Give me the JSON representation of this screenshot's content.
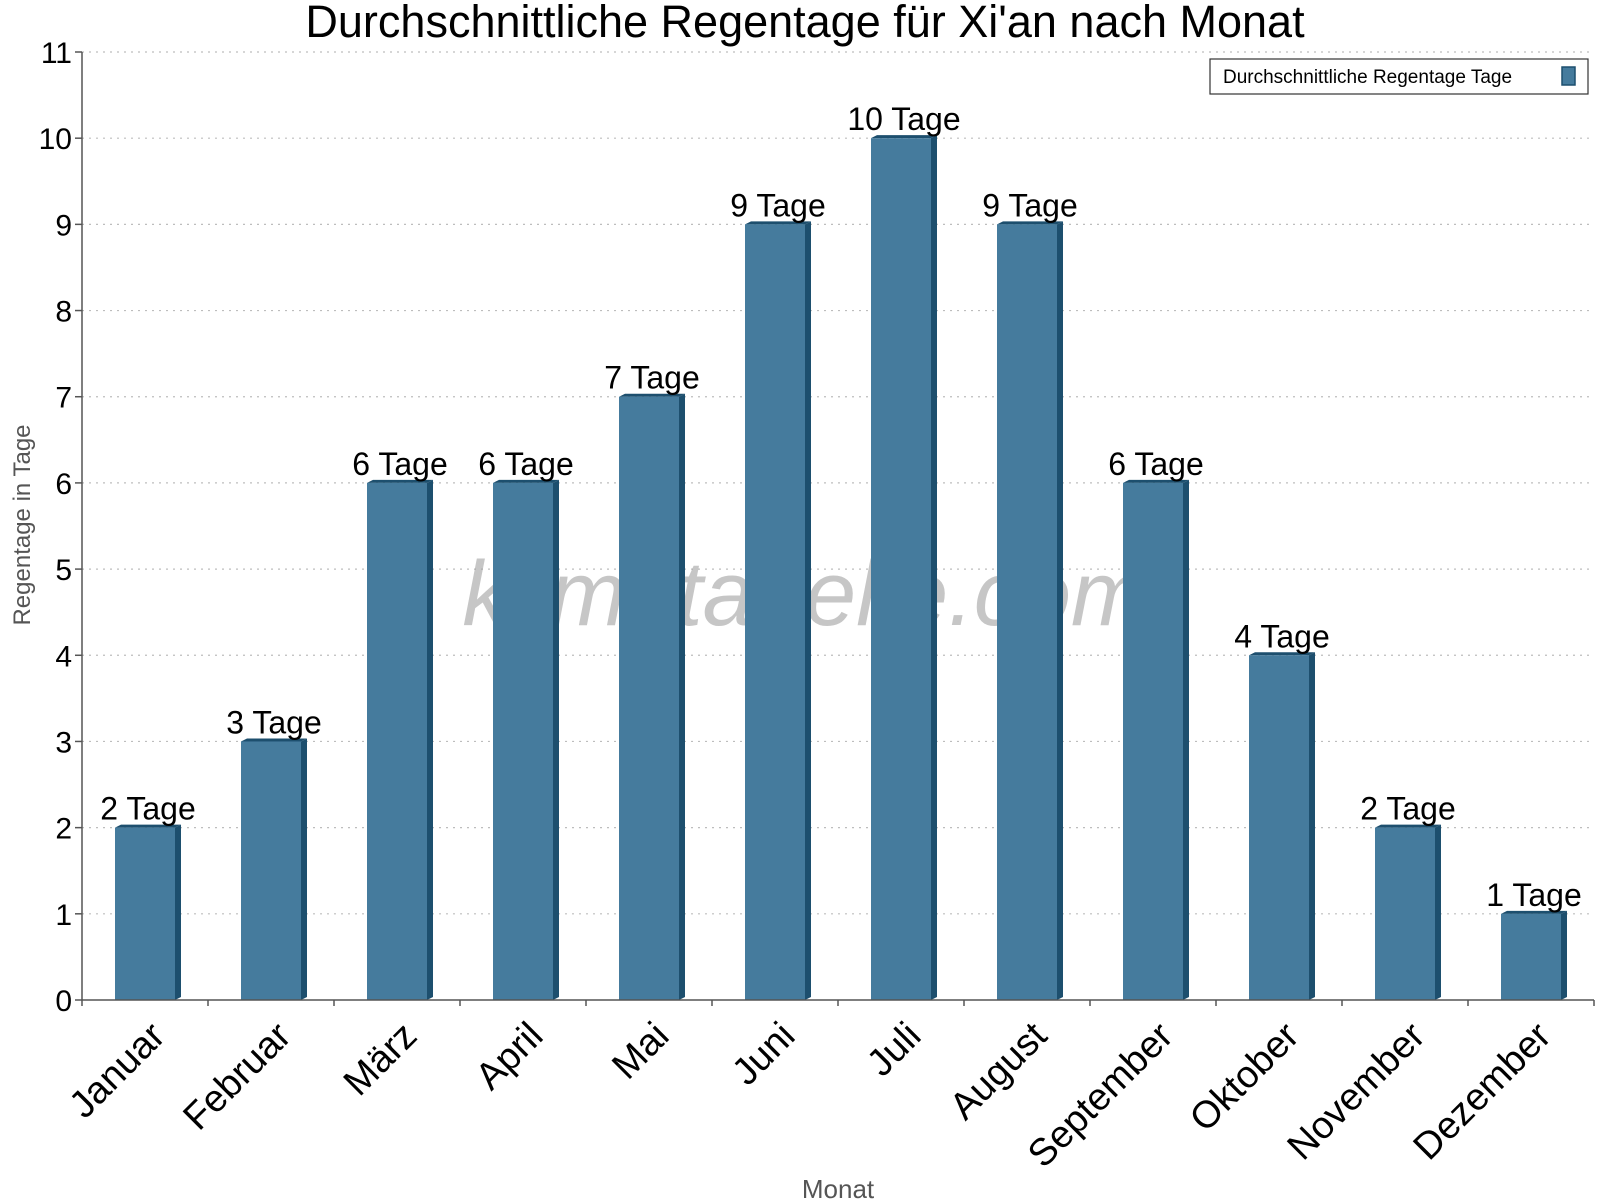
{
  "chart_data": {
    "type": "bar",
    "title": "Durchschnittliche Regentage für Xi'an nach Monat",
    "xlabel": "Monat",
    "ylabel": "Regentage in Tage",
    "ylim": [
      0,
      11
    ],
    "yticks": [
      0,
      1,
      2,
      3,
      4,
      5,
      6,
      7,
      8,
      9,
      10,
      11
    ],
    "grid": true,
    "legend_position": "top-right",
    "categories": [
      "Januar",
      "Februar",
      "März",
      "April",
      "Mai",
      "Juni",
      "Juli",
      "August",
      "September",
      "Oktober",
      "November",
      "Dezember"
    ],
    "series": [
      {
        "name": "Durchschnittliche Regentage Tage",
        "values": [
          2,
          3,
          6,
          6,
          7,
          9,
          10,
          9,
          6,
          4,
          2,
          1
        ],
        "data_labels": [
          "2 Tage",
          "3 Tage",
          "6 Tage",
          "6 Tage",
          "7 Tage",
          "9 Tage",
          "10 Tage",
          "9 Tage",
          "6 Tage",
          "4 Tage",
          "2 Tage",
          "1 Tage"
        ],
        "color": "#457b9d",
        "side_color": "#1d4f6e"
      }
    ],
    "watermark": "klimatabelle.com"
  }
}
